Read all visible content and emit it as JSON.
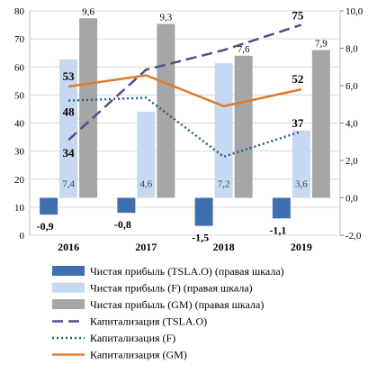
{
  "chart_data": {
    "type": "bar",
    "title": "",
    "xlabel": "",
    "ylabel": "",
    "categories": [
      "2016",
      "2017",
      "2018",
      "2019"
    ],
    "y_left": {
      "min": 0,
      "max": 80,
      "step": 10,
      "ticks": [
        "0",
        "10",
        "20",
        "30",
        "40",
        "50",
        "60",
        "70",
        "80"
      ]
    },
    "y_right": {
      "min": -2.0,
      "max": 10.0,
      "step": 2.0,
      "ticks": [
        "-2,0",
        "0,0",
        "2,0",
        "4,0",
        "6,0",
        "8,0",
        "10,0"
      ]
    },
    "grid": true,
    "legend_position": "bottom",
    "series": [
      {
        "name": "Чистая прибыль (TSLA.O) (правая шкала)",
        "kind": "bar",
        "axis": "right",
        "color": "#3f6fae",
        "values": [
          -0.9,
          -0.8,
          -1.5,
          -1.1
        ],
        "labels": [
          "-0,9",
          "-0,8",
          "-1,5",
          "-1,1"
        ]
      },
      {
        "name": "Чистая прибыль (F) (правая шкала)",
        "kind": "bar",
        "axis": "right",
        "color": "#c6d9f1",
        "values": [
          7.4,
          4.6,
          7.2,
          3.6
        ],
        "labels": [
          "7,4",
          "4,6",
          "7,2",
          "3,6"
        ]
      },
      {
        "name": "Чистая прибыль (GM) (правая шкала)",
        "kind": "bar",
        "axis": "right",
        "color": "#a6a6a6",
        "values": [
          9.6,
          9.3,
          7.6,
          7.9
        ],
        "labels": [
          "9,6",
          "9,3",
          "7,6",
          "7,9"
        ]
      },
      {
        "name": "Капитализация  (TSLA.O)",
        "kind": "line",
        "axis": "left",
        "color": "#5b4a8a",
        "style": "dashed",
        "values": [
          34,
          59,
          66,
          75
        ],
        "labels": [
          "34",
          "",
          "",
          "75"
        ]
      },
      {
        "name": "Капитализация  (F)",
        "kind": "line",
        "axis": "left",
        "color": "#1f5f8b",
        "style": "dotted",
        "values": [
          48,
          49,
          28,
          37
        ],
        "labels": [
          "48",
          "",
          "",
          "37"
        ]
      },
      {
        "name": "Капитализация  (GM)",
        "kind": "line",
        "axis": "left",
        "color": "#e07b2a",
        "style": "solid",
        "values": [
          53,
          57,
          46,
          52
        ],
        "labels": [
          "53",
          "",
          "",
          "52"
        ]
      }
    ]
  }
}
